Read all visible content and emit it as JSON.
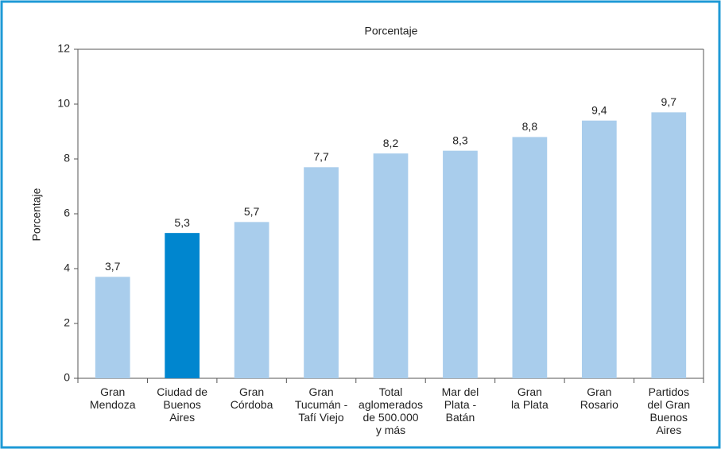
{
  "chart_data": {
    "type": "bar",
    "title": "Porcentaje",
    "y_label": "Porcentaje",
    "categories": [
      [
        "Gran",
        "Mendoza"
      ],
      [
        "Ciudad de",
        "Buenos",
        "Aires"
      ],
      [
        "Gran",
        "Córdoba"
      ],
      [
        "Gran",
        "Tucumán -",
        "Tafí Viejo"
      ],
      [
        "Total",
        "aglomerados",
        "de 500.000",
        "y más"
      ],
      [
        "Mar del",
        "Plata -",
        "Batán"
      ],
      [
        "Gran",
        "la Plata"
      ],
      [
        "Gran",
        "Rosario"
      ],
      [
        "Partidos",
        "del Gran",
        "Buenos",
        "Aires"
      ]
    ],
    "values": [
      3.7,
      5.3,
      5.7,
      7.7,
      8.2,
      8.3,
      8.8,
      9.4,
      9.7
    ],
    "value_labels": [
      "3,7",
      "5,3",
      "5,7",
      "7,7",
      "8,2",
      "8,3",
      "8,8",
      "9,4",
      "9,7"
    ],
    "colors": [
      "#a9cdec",
      "#0086cf",
      "#a9cdec",
      "#a9cdec",
      "#a9cdec",
      "#a9cdec",
      "#a9cdec",
      "#a9cdec",
      "#a9cdec"
    ],
    "ylim": [
      0,
      12
    ],
    "yticks": [
      0,
      2,
      4,
      6,
      8,
      10,
      12
    ],
    "grid": false
  }
}
